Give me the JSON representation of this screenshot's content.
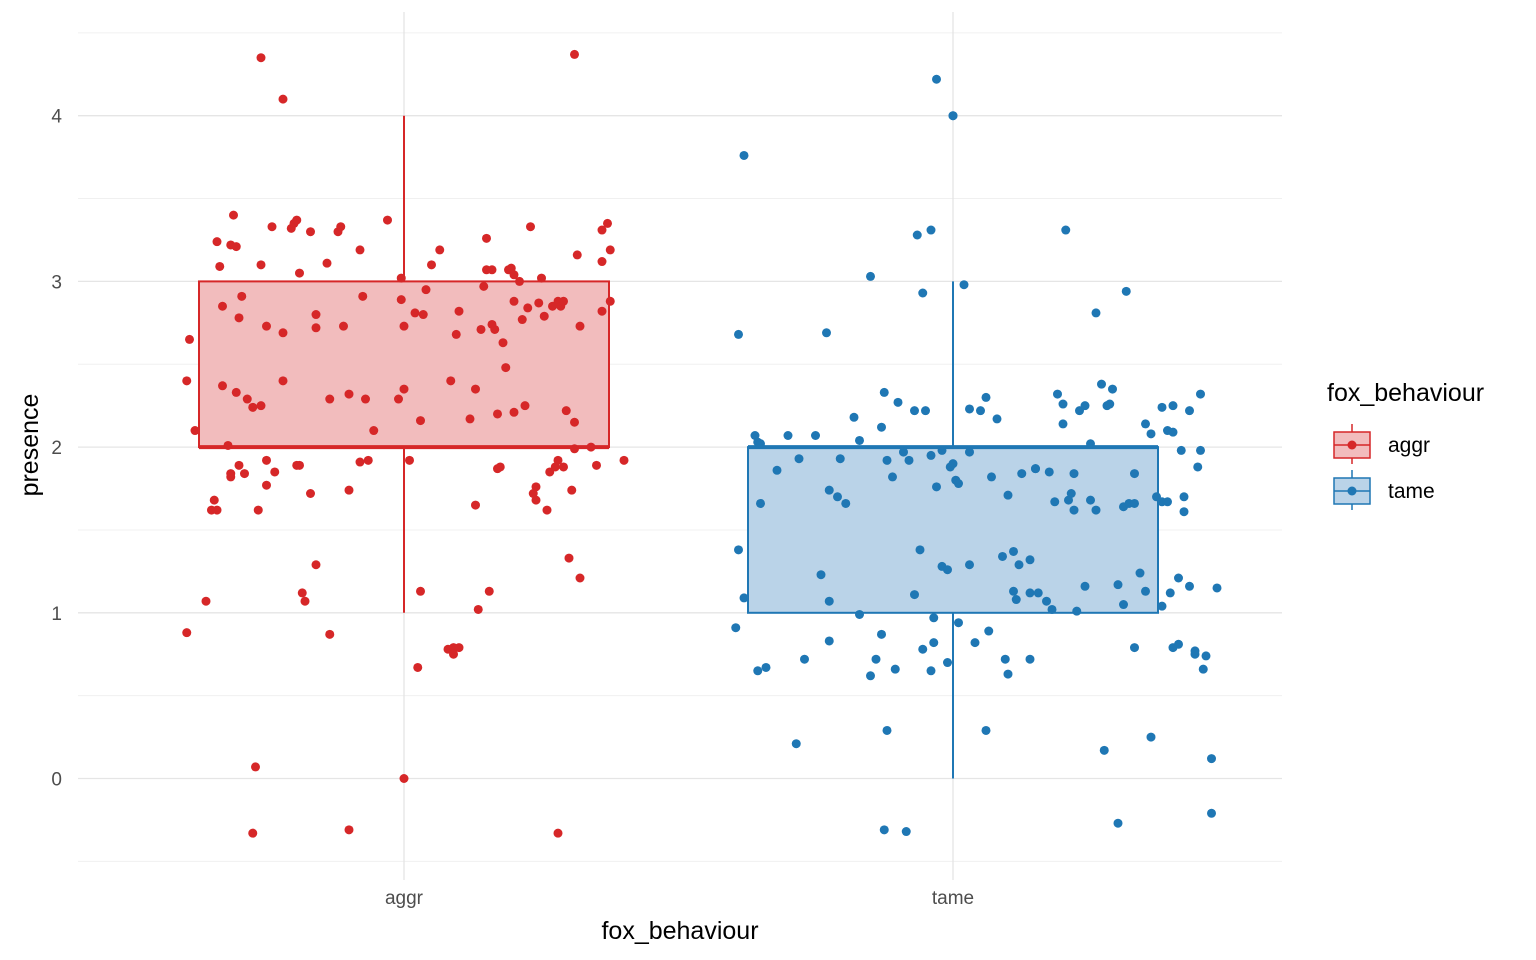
{
  "chart_data": {
    "type": "boxplot",
    "xlabel": "fox_behaviour",
    "ylabel": "presence",
    "ylim": [
      -0.5,
      4.5
    ],
    "yticks": [
      0,
      1,
      2,
      3,
      4
    ],
    "grid": true,
    "legend": {
      "title": "fox_behaviour",
      "position": "right",
      "entries": [
        {
          "label": "aggr",
          "color": "#d62728"
        },
        {
          "label": "tame",
          "color": "#1f77b4"
        }
      ]
    },
    "categories": [
      "aggr",
      "tame"
    ],
    "boxes": [
      {
        "category": "aggr",
        "whisker_low": 1,
        "q1": 2,
        "median": 2,
        "q3": 3,
        "whisker_high": 4,
        "outliers": [
          0
        ],
        "color": "#d62728",
        "fill": "#f2bcbd"
      },
      {
        "category": "tame",
        "whisker_low": 0,
        "q1": 1,
        "median": 2,
        "q3": 2,
        "whisker_high": 3,
        "outliers": [
          4
        ],
        "color": "#1f77b4",
        "fill": "#bad3e8"
      }
    ],
    "series": [
      {
        "name": "aggr",
        "color": "#d62728",
        "points": [
          [
            -0.39,
            2.65
          ],
          [
            -0.395,
            2.4
          ],
          [
            -0.38,
            2.1
          ],
          [
            -0.395,
            0.88
          ],
          [
            -0.36,
            1.07
          ],
          [
            -0.35,
            1.62
          ],
          [
            -0.34,
            1.62
          ],
          [
            -0.345,
            1.68
          ],
          [
            -0.34,
            3.24
          ],
          [
            -0.335,
            3.09
          ],
          [
            -0.33,
            2.85
          ],
          [
            -0.33,
            2.37
          ],
          [
            -0.32,
            2.01
          ],
          [
            -0.315,
            1.82
          ],
          [
            -0.315,
            1.84
          ],
          [
            -0.315,
            3.22
          ],
          [
            -0.31,
            3.4
          ],
          [
            -0.305,
            2.33
          ],
          [
            -0.305,
            3.21
          ],
          [
            -0.3,
            2.78
          ],
          [
            -0.295,
            2.91
          ],
          [
            -0.3,
            1.89
          ],
          [
            -0.29,
            1.84
          ],
          [
            -0.285,
            2.29
          ],
          [
            -0.275,
            2.24
          ],
          [
            -0.27,
            0.07
          ],
          [
            -0.275,
            -0.33
          ],
          [
            -0.26,
            3.1
          ],
          [
            -0.26,
            2.25
          ],
          [
            -0.25,
            2.73
          ],
          [
            -0.25,
            1.92
          ],
          [
            -0.25,
            1.77
          ],
          [
            -0.265,
            1.62
          ],
          [
            -0.24,
            3.33
          ],
          [
            -0.235,
            1.85
          ],
          [
            -0.22,
            2.69
          ],
          [
            -0.22,
            2.4
          ],
          [
            -0.22,
            4.1
          ],
          [
            -0.26,
            4.35
          ],
          [
            -0.205,
            3.32
          ],
          [
            -0.2,
            3.35
          ],
          [
            -0.195,
            3.37
          ],
          [
            -0.19,
            3.05
          ],
          [
            -0.19,
            1.89
          ],
          [
            -0.195,
            1.89
          ],
          [
            -0.185,
            1.12
          ],
          [
            -0.18,
            1.07
          ],
          [
            -0.17,
            3.3
          ],
          [
            -0.17,
            1.72
          ],
          [
            -0.16,
            2.8
          ],
          [
            -0.16,
            2.72
          ],
          [
            -0.16,
            1.29
          ],
          [
            -0.14,
            3.11
          ],
          [
            -0.135,
            2.29
          ],
          [
            -0.135,
            0.87
          ],
          [
            -0.12,
            3.3
          ],
          [
            -0.115,
            3.33
          ],
          [
            -0.11,
            2.73
          ],
          [
            -0.1,
            2.32
          ],
          [
            -0.1,
            1.74
          ],
          [
            -0.1,
            -0.31
          ],
          [
            -0.08,
            1.91
          ],
          [
            -0.08,
            3.19
          ],
          [
            -0.075,
            2.91
          ],
          [
            -0.07,
            2.29
          ],
          [
            -0.065,
            1.92
          ],
          [
            -0.055,
            2.1
          ],
          [
            -0.03,
            3.37
          ],
          [
            -0.01,
            2.29
          ],
          [
            -0.005,
            2.89
          ],
          [
            -0.005,
            3.02
          ],
          [
            0,
            2.35
          ],
          [
            0,
            2.73
          ],
          [
            0.01,
            1.92
          ],
          [
            0.02,
            2.81
          ],
          [
            0.025,
            0.67
          ],
          [
            0.03,
            1.13
          ],
          [
            0.03,
            2.16
          ],
          [
            0.035,
            2.8
          ],
          [
            0.04,
            2.95
          ],
          [
            0.05,
            3.1
          ],
          [
            0.065,
            3.19
          ],
          [
            0.08,
            0.78
          ],
          [
            0.085,
            2.4
          ],
          [
            0.09,
            0.79
          ],
          [
            0.09,
            0.75
          ],
          [
            0.095,
            2.68
          ],
          [
            0.1,
            0.79
          ],
          [
            0.1,
            2.82
          ],
          [
            0.12,
            2.17
          ],
          [
            0.13,
            2.35
          ],
          [
            0.13,
            1.65
          ],
          [
            0.135,
            1.02
          ],
          [
            0.14,
            2.71
          ],
          [
            0.145,
            2.97
          ],
          [
            0.15,
            3.07
          ],
          [
            0.15,
            3.26
          ],
          [
            0.155,
            1.13
          ],
          [
            0.16,
            3.07
          ],
          [
            0.16,
            2.74
          ],
          [
            0.165,
            2.71
          ],
          [
            0.17,
            2.2
          ],
          [
            0.17,
            1.87
          ],
          [
            0.175,
            1.88
          ],
          [
            0.18,
            2.63
          ],
          [
            0.185,
            2.48
          ],
          [
            0.19,
            3.07
          ],
          [
            0.195,
            3.08
          ],
          [
            0.2,
            3.04
          ],
          [
            0.2,
            2.88
          ],
          [
            0.2,
            2.21
          ],
          [
            0.21,
            3.0
          ],
          [
            0.215,
            2.77
          ],
          [
            0.22,
            2.25
          ],
          [
            0.225,
            2.84
          ],
          [
            0.23,
            3.33
          ],
          [
            0.235,
            1.72
          ],
          [
            0.24,
            1.76
          ],
          [
            0.24,
            1.68
          ],
          [
            0.245,
            2.87
          ],
          [
            0.25,
            3.02
          ],
          [
            0.255,
            2.79
          ],
          [
            0.26,
            1.62
          ],
          [
            0.265,
            1.85
          ],
          [
            0.27,
            2.85
          ],
          [
            0.275,
            1.88
          ],
          [
            0.28,
            -0.33
          ],
          [
            0.28,
            2.88
          ],
          [
            0.28,
            1.92
          ],
          [
            0.285,
            2.85
          ],
          [
            0.29,
            2.88
          ],
          [
            0.29,
            1.88
          ],
          [
            0.295,
            2.22
          ],
          [
            0.3,
            1.33
          ],
          [
            0.305,
            1.74
          ],
          [
            0.31,
            4.37
          ],
          [
            0.31,
            1.99
          ],
          [
            0.31,
            2.15
          ],
          [
            0.315,
            3.16
          ],
          [
            0.32,
            1.21
          ],
          [
            0.32,
            2.73
          ],
          [
            0.34,
            2.0
          ],
          [
            0.35,
            1.89
          ],
          [
            0.36,
            3.12
          ],
          [
            0.36,
            2.82
          ],
          [
            0.36,
            3.31
          ],
          [
            0.37,
            3.35
          ],
          [
            0.375,
            2.88
          ],
          [
            0.375,
            3.19
          ],
          [
            0.4,
            1.92
          ]
        ]
      },
      {
        "name": "tame",
        "color": "#1f77b4",
        "points": [
          [
            -0.395,
            0.91
          ],
          [
            -0.39,
            1.38
          ],
          [
            -0.39,
            2.68
          ],
          [
            -0.38,
            1.09
          ],
          [
            -0.38,
            3.76
          ],
          [
            -0.36,
            2.07
          ],
          [
            -0.355,
            2.03
          ],
          [
            -0.355,
            0.65
          ],
          [
            -0.35,
            2.02
          ],
          [
            -0.35,
            1.66
          ],
          [
            -0.34,
            0.67
          ],
          [
            -0.32,
            1.86
          ],
          [
            -0.3,
            2.07
          ],
          [
            -0.285,
            0.21
          ],
          [
            -0.28,
            1.93
          ],
          [
            -0.27,
            0.72
          ],
          [
            -0.25,
            2.07
          ],
          [
            -0.24,
            1.23
          ],
          [
            -0.23,
            2.69
          ],
          [
            -0.225,
            1.74
          ],
          [
            -0.225,
            0.83
          ],
          [
            -0.225,
            1.07
          ],
          [
            -0.21,
            1.7
          ],
          [
            -0.205,
            1.93
          ],
          [
            -0.195,
            1.66
          ],
          [
            -0.18,
            2.18
          ],
          [
            -0.17,
            2.04
          ],
          [
            -0.17,
            0.99
          ],
          [
            -0.15,
            3.03
          ],
          [
            -0.15,
            0.62
          ],
          [
            -0.14,
            0.72
          ],
          [
            -0.13,
            0.87
          ],
          [
            -0.13,
            2.12
          ],
          [
            -0.125,
            2.33
          ],
          [
            -0.125,
            -0.31
          ],
          [
            -0.12,
            0.29
          ],
          [
            -0.12,
            1.92
          ],
          [
            -0.11,
            1.82
          ],
          [
            -0.105,
            0.66
          ],
          [
            -0.1,
            2.27
          ],
          [
            -0.09,
            1.97
          ],
          [
            -0.085,
            -0.32
          ],
          [
            -0.08,
            1.92
          ],
          [
            -0.07,
            2.22
          ],
          [
            -0.07,
            1.11
          ],
          [
            -0.065,
            3.28
          ],
          [
            -0.06,
            1.38
          ],
          [
            -0.055,
            2.93
          ],
          [
            -0.055,
            0.78
          ],
          [
            -0.05,
            2.22
          ],
          [
            -0.04,
            1.95
          ],
          [
            -0.04,
            3.31
          ],
          [
            -0.04,
            0.65
          ],
          [
            -0.035,
            0.97
          ],
          [
            -0.03,
            4.22
          ],
          [
            -0.035,
            0.82
          ],
          [
            -0.03,
            1.76
          ],
          [
            -0.02,
            1.28
          ],
          [
            -0.02,
            1.98
          ],
          [
            -0.01,
            1.26
          ],
          [
            -0.01,
            0.7
          ],
          [
            -0.005,
            1.88
          ],
          [
            0,
            1.9
          ],
          [
            0,
            4.0
          ],
          [
            0.005,
            1.8
          ],
          [
            0.01,
            1.78
          ],
          [
            0.01,
            0.94
          ],
          [
            0.02,
            2.98
          ],
          [
            0.03,
            1.97
          ],
          [
            0.03,
            1.29
          ],
          [
            0.03,
            2.23
          ],
          [
            0.04,
            0.82
          ],
          [
            0.05,
            2.22
          ],
          [
            0.06,
            2.3
          ],
          [
            0.06,
            0.29
          ],
          [
            0.065,
            0.89
          ],
          [
            0.07,
            1.82
          ],
          [
            0.08,
            2.17
          ],
          [
            0.09,
            1.34
          ],
          [
            0.095,
            0.72
          ],
          [
            0.1,
            1.71
          ],
          [
            0.1,
            0.63
          ],
          [
            0.11,
            1.37
          ],
          [
            0.11,
            1.13
          ],
          [
            0.115,
            1.08
          ],
          [
            0.12,
            1.29
          ],
          [
            0.125,
            1.84
          ],
          [
            0.14,
            1.12
          ],
          [
            0.14,
            0.72
          ],
          [
            0.14,
            1.32
          ],
          [
            0.15,
            1.87
          ],
          [
            0.15,
            1.87
          ],
          [
            0.155,
            1.12
          ],
          [
            0.17,
            1.07
          ],
          [
            0.175,
            1.85
          ],
          [
            0.18,
            1.02
          ],
          [
            0.185,
            1.67
          ],
          [
            0.19,
            2.32
          ],
          [
            0.2,
            2.26
          ],
          [
            0.2,
            2.14
          ],
          [
            0.205,
            3.31
          ],
          [
            0.21,
            1.68
          ],
          [
            0.215,
            1.72
          ],
          [
            0.22,
            1.84
          ],
          [
            0.22,
            1.62
          ],
          [
            0.225,
            1.01
          ],
          [
            0.23,
            2.22
          ],
          [
            0.24,
            2.25
          ],
          [
            0.24,
            1.16
          ],
          [
            0.25,
            2.02
          ],
          [
            0.25,
            1.68
          ],
          [
            0.26,
            2.81
          ],
          [
            0.26,
            1.62
          ],
          [
            0.27,
            2.38
          ],
          [
            0.275,
            0.17
          ],
          [
            0.28,
            2.25
          ],
          [
            0.285,
            2.26
          ],
          [
            0.29,
            2.35
          ],
          [
            0.3,
            1.17
          ],
          [
            0.3,
            -0.27
          ],
          [
            0.31,
            1.64
          ],
          [
            0.31,
            1.05
          ],
          [
            0.315,
            2.94
          ],
          [
            0.32,
            1.66
          ],
          [
            0.33,
            0.79
          ],
          [
            0.33,
            1.66
          ],
          [
            0.33,
            1.84
          ],
          [
            0.34,
            1.24
          ],
          [
            0.35,
            1.13
          ],
          [
            0.35,
            2.14
          ],
          [
            0.36,
            2.08
          ],
          [
            0.36,
            0.25
          ],
          [
            0.37,
            1.7
          ],
          [
            0.38,
            1.04
          ],
          [
            0.38,
            1.67
          ],
          [
            0.38,
            2.24
          ],
          [
            0.39,
            2.1
          ],
          [
            0.39,
            1.67
          ],
          [
            0.395,
            1.12
          ],
          [
            0.4,
            2.25
          ],
          [
            0.4,
            0.79
          ],
          [
            0.41,
            0.81
          ],
          [
            0.41,
            1.21
          ],
          [
            0.415,
            1.98
          ],
          [
            0.42,
            1.7
          ],
          [
            0.43,
            1.16
          ],
          [
            0.44,
            0.75
          ],
          [
            0.445,
            1.88
          ],
          [
            0.45,
            2.32
          ],
          [
            0.455,
            0.66
          ],
          [
            0.46,
            0.74
          ],
          [
            0.47,
            0.12
          ],
          [
            0.47,
            -0.21
          ],
          [
            0.48,
            1.15
          ],
          [
            0.45,
            1.98
          ],
          [
            0.44,
            0.77
          ],
          [
            0.43,
            2.22
          ],
          [
            0.42,
            1.61
          ],
          [
            0.4,
            2.09
          ]
        ]
      }
    ]
  }
}
